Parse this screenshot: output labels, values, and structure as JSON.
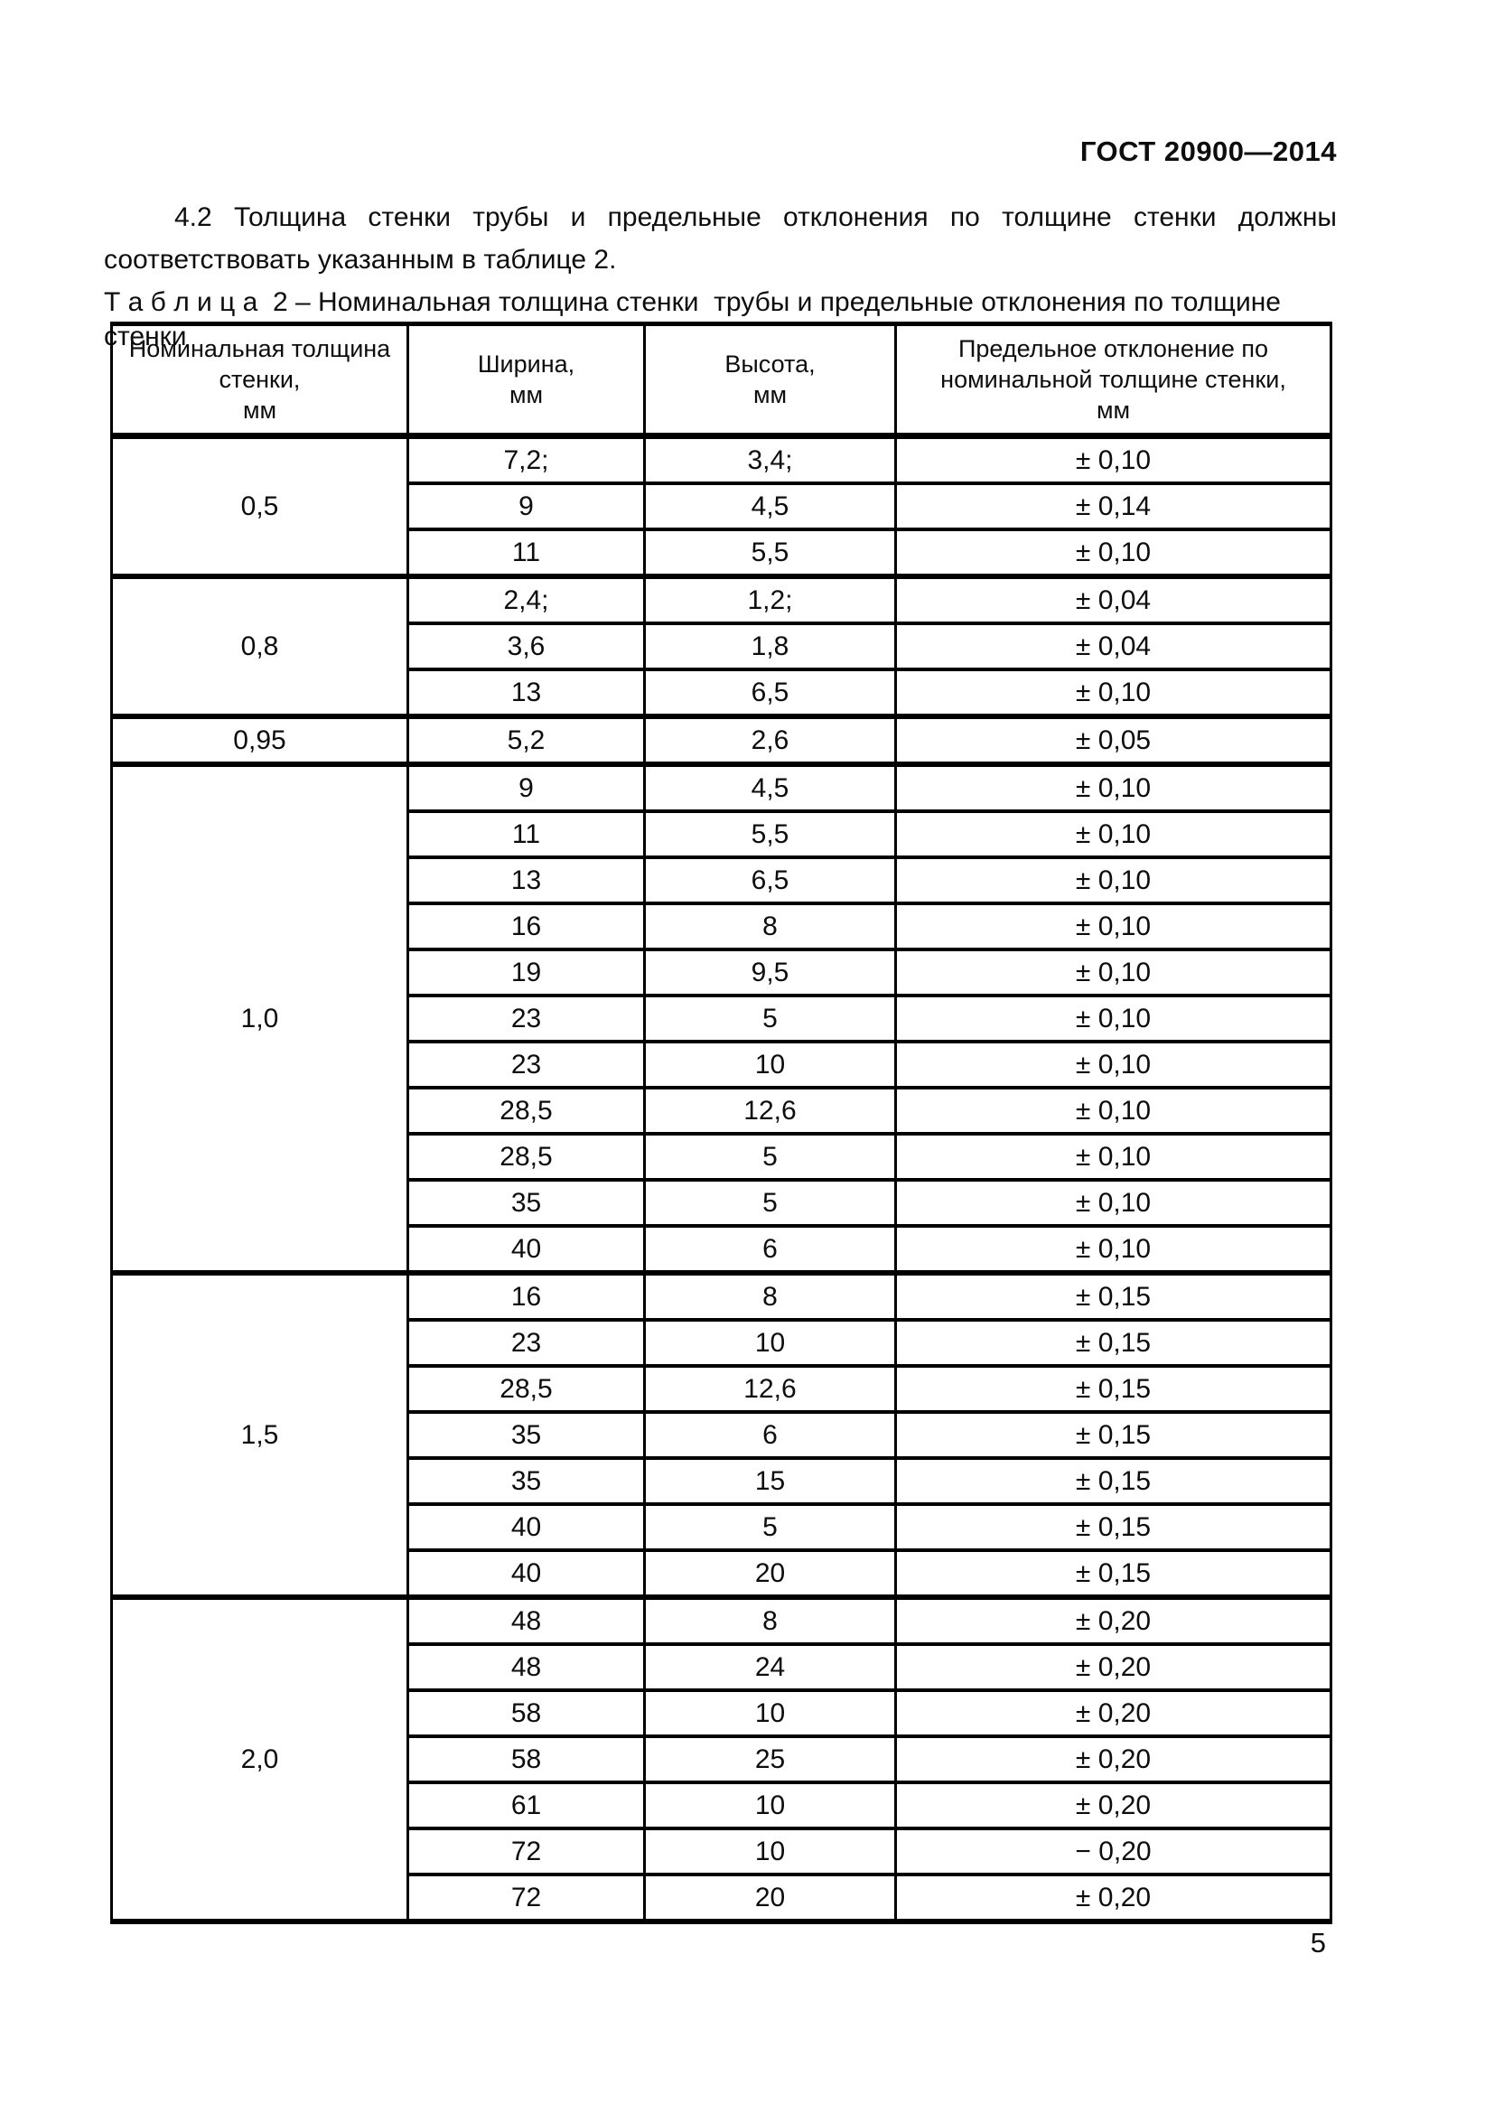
{
  "header": {
    "doc_number": "ГОСТ 20900—2014"
  },
  "body": {
    "paragraph_4_2": "4.2 Толщина стенки трубы и предельные отклонения по толщине стенки должны соответствовать указанным в таблице 2."
  },
  "table": {
    "caption": "Т а б л и ц а  2 – Номинальная толщина стенки  трубы и предельные отклонения по толщине стенки",
    "columns": [
      "Номинальная толщина\nстенки,\nмм",
      "Ширина,\nмм",
      "Высота,\nмм",
      "Предельное отклонение по\nноминальной толщине стенки,\nмм"
    ],
    "groups": [
      {
        "label": "0,5",
        "rows": [
          [
            "7,2;",
            "3,4;",
            "± 0,10"
          ],
          [
            "9",
            "4,5",
            "± 0,14"
          ],
          [
            "11",
            "5,5",
            "± 0,10"
          ]
        ]
      },
      {
        "label": "0,8",
        "rows": [
          [
            "2,4;",
            "1,2;",
            "± 0,04"
          ],
          [
            "3,6",
            "1,8",
            "± 0,04"
          ],
          [
            "13",
            "6,5",
            "± 0,10"
          ]
        ]
      },
      {
        "label": "0,95",
        "rows": [
          [
            "5,2",
            "2,6",
            "± 0,05"
          ]
        ]
      },
      {
        "label": "1,0",
        "rows": [
          [
            "9",
            "4,5",
            "± 0,10"
          ],
          [
            "11",
            "5,5",
            "± 0,10"
          ],
          [
            "13",
            "6,5",
            "± 0,10"
          ],
          [
            "16",
            "8",
            "± 0,10"
          ],
          [
            "19",
            "9,5",
            "± 0,10"
          ],
          [
            "23",
            "5",
            "± 0,10"
          ],
          [
            "23",
            "10",
            "± 0,10"
          ],
          [
            "28,5",
            "12,6",
            "± 0,10"
          ],
          [
            "28,5",
            "5",
            "± 0,10"
          ],
          [
            "35",
            "5",
            "± 0,10"
          ],
          [
            "40",
            "6",
            "± 0,10"
          ]
        ]
      },
      {
        "label": "1,5",
        "rows": [
          [
            "16",
            "8",
            "± 0,15"
          ],
          [
            "23",
            "10",
            "± 0,15"
          ],
          [
            "28,5",
            "12,6",
            "± 0,15"
          ],
          [
            "35",
            "6",
            "± 0,15"
          ],
          [
            "35",
            "15",
            "± 0,15"
          ],
          [
            "40",
            "5",
            "± 0,15"
          ],
          [
            "40",
            "20",
            "± 0,15"
          ]
        ]
      },
      {
        "label": "2,0",
        "rows": [
          [
            "48",
            "8",
            "± 0,20"
          ],
          [
            "48",
            "24",
            "± 0,20"
          ],
          [
            "58",
            "10",
            "± 0,20"
          ],
          [
            "58",
            "25",
            "± 0,20"
          ],
          [
            "61",
            "10",
            "± 0,20"
          ],
          [
            "72",
            "10",
            "− 0,20"
          ],
          [
            "72",
            "20",
            "± 0,20"
          ]
        ]
      }
    ]
  },
  "footer": {
    "page_number": "5"
  }
}
